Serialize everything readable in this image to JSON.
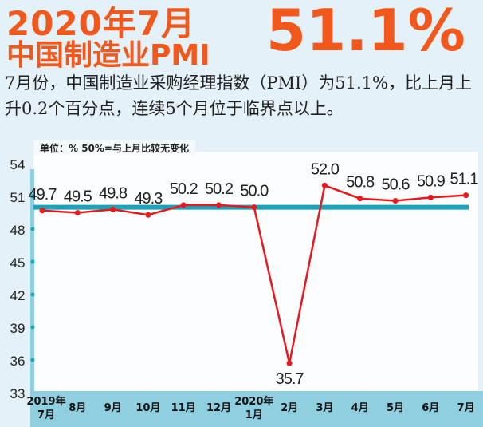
{
  "header": {
    "title_line1": "2020年7月",
    "title_line2": "中国制造业PMI",
    "headline_value": "51.1%"
  },
  "description": "7月份，中国制造业采购经理指数（PMI）为51.1%，比上月上升0.2个百分点，连续5个月位于临界点以上。",
  "chart_data": {
    "type": "line",
    "unit_note": "单位：%  50%=与上月比较无变化",
    "categories": [
      [
        "2019年",
        "7月"
      ],
      [
        "8月"
      ],
      [
        "9月"
      ],
      [
        "10月"
      ],
      [
        "11月"
      ],
      [
        "12月"
      ],
      [
        "2020年",
        "1月"
      ],
      [
        "2月"
      ],
      [
        "3月"
      ],
      [
        "4月"
      ],
      [
        "5月"
      ],
      [
        "6月"
      ],
      [
        "7月"
      ]
    ],
    "values": [
      49.7,
      49.5,
      49.8,
      49.3,
      50.2,
      50.2,
      50.0,
      35.7,
      52.0,
      50.8,
      50.6,
      50.9,
      51.1
    ],
    "labels": [
      "49.7",
      "49.5",
      "49.8",
      "49.3",
      "50.2",
      "50.2",
      "50.0",
      "35.7",
      "52.0",
      "50.8",
      "50.6",
      "50.9",
      "51.1"
    ],
    "yticks": [
      33,
      36,
      39,
      42,
      45,
      48,
      51,
      54
    ],
    "ylim": [
      33,
      54
    ],
    "reference_line": 50,
    "colors": {
      "line": "#e8191c",
      "reference": "#1aa3b8",
      "axis_band": "#8fcfe0",
      "title": "#f2581c"
    }
  }
}
